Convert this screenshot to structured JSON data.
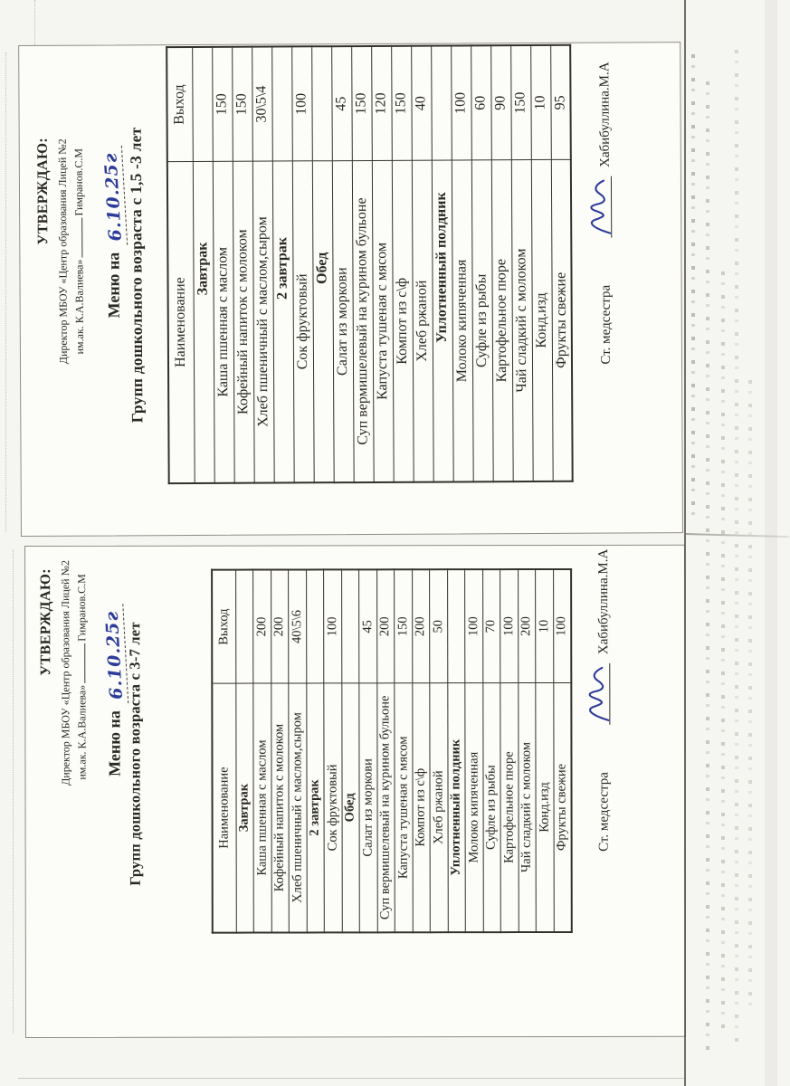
{
  "document": {
    "colors": {
      "ink_blue": "#2d3c98",
      "paper": "#fcfcf9",
      "text": "#2a2822",
      "table_border": "#33312b"
    },
    "pages": [
      {
        "approval": {
          "line1": "УТВЕРЖДАЮ:",
          "line2": "Директор МБОУ «Центр образования Лицей №2",
          "line3_org": "им.ак. К.А.Валиева»",
          "line3_name": "Гимранов.С.М"
        },
        "menu_label": "Меню на",
        "menu_date_handwritten": "6.10.25г",
        "title": "Групп дошкольного возраста с 1,5 -3 лет",
        "table": {
          "columns": [
            "Наименование",
            "Выход"
          ],
          "rows": [
            {
              "type": "section",
              "name": "Завтрак",
              "value": ""
            },
            {
              "type": "item",
              "name": "Каша пшенная с маслом",
              "value": "150"
            },
            {
              "type": "item",
              "name": "Кофейный напиток с молоком",
              "value": "150"
            },
            {
              "type": "item",
              "name": "Хлеб пшеничный с маслом,сыром",
              "value": "30\\5\\4"
            },
            {
              "type": "section",
              "name": "2 завтрак",
              "value": ""
            },
            {
              "type": "item",
              "name": "Сок фруктовый",
              "value": "100"
            },
            {
              "type": "section",
              "name": "Обед",
              "value": ""
            },
            {
              "type": "item",
              "name": "Салат из моркови",
              "value": "45"
            },
            {
              "type": "item",
              "name": "Суп вермишелевый на курином бульоне",
              "value": "150"
            },
            {
              "type": "item",
              "name": "Капуста тушеная с мясом",
              "value": "120"
            },
            {
              "type": "item",
              "name": "Компот из с\\ф",
              "value": "150"
            },
            {
              "type": "item",
              "name": "Хлеб ржаной",
              "value": "40"
            },
            {
              "type": "section",
              "name": "Уплотненный полдник",
              "value": ""
            },
            {
              "type": "item",
              "name": "Молоко кипяченная",
              "value": "100"
            },
            {
              "type": "item",
              "name": "Суфле из рыбы",
              "value": "60"
            },
            {
              "type": "item",
              "name": "Картофельное пюре",
              "value": "90"
            },
            {
              "type": "item",
              "name": "Чай сладкий с молоком",
              "value": "150"
            },
            {
              "type": "item",
              "name": "Конд.изд",
              "value": "10"
            },
            {
              "type": "item",
              "name": "Фрукты свежие",
              "value": "95"
            }
          ]
        },
        "signature": {
          "role": "Ст. медсестра",
          "name": "Хабибуллина.М.А"
        }
      },
      {
        "approval": {
          "line1": "УТВЕРЖДАЮ:",
          "line2": "Директор МБОУ «Центр образования Лицей №2",
          "line3_org": "им.ак. К.А.Валиева»",
          "line3_name": "Гимранов.С.М"
        },
        "menu_label": "Меню на",
        "menu_date_handwritten": "6.10.25г",
        "title": "Групп дошкольного возраста с 3-7 лет",
        "table": {
          "columns": [
            "Наименование",
            "Выход"
          ],
          "rows": [
            {
              "type": "section",
              "name": "Завтрак",
              "value": ""
            },
            {
              "type": "item",
              "name": "Каша пшенная с маслом",
              "value": "200"
            },
            {
              "type": "item",
              "name": "Кофейный напиток с молоком",
              "value": "200"
            },
            {
              "type": "item",
              "name": "Хлеб пшеничный с маслом,сыром",
              "value": "40\\5\\6"
            },
            {
              "type": "section",
              "name": "2 завтрак",
              "value": ""
            },
            {
              "type": "item",
              "name": "Сок фруктовый",
              "value": "100"
            },
            {
              "type": "section",
              "name": "Обед",
              "value": ""
            },
            {
              "type": "item",
              "name": "Салат из моркови",
              "value": "45"
            },
            {
              "type": "item",
              "name": "Суп вермишелевый на курином бульоне",
              "value": "200"
            },
            {
              "type": "item",
              "name": "Капуста тушеная с мясом",
              "value": "150"
            },
            {
              "type": "item",
              "name": "Компот из с\\ф",
              "value": "200"
            },
            {
              "type": "item",
              "name": "Хлеб ржаной",
              "value": "50"
            },
            {
              "type": "section",
              "name": "Уплотненный полдник",
              "value": ""
            },
            {
              "type": "item",
              "name": "Молоко кипяченная",
              "value": "100"
            },
            {
              "type": "item",
              "name": "Суфле из рыбы",
              "value": "70"
            },
            {
              "type": "item",
              "name": "Картофельное пюре",
              "value": "100"
            },
            {
              "type": "item",
              "name": "Чай сладкий с молоком",
              "value": "200"
            },
            {
              "type": "item",
              "name": "Конд.изд",
              "value": "10"
            },
            {
              "type": "item",
              "name": "Фрукты свежие",
              "value": "100"
            }
          ]
        },
        "signature": {
          "role": "Ст. медсестра",
          "name": "Хабибуллина.М.А"
        }
      }
    ]
  }
}
